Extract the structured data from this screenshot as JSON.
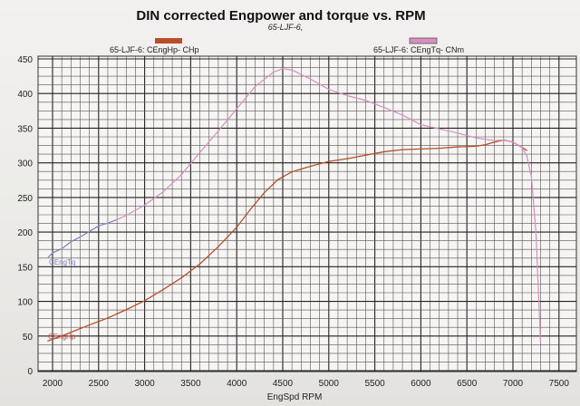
{
  "chart_data": {
    "type": "line",
    "title": "DIN corrected Engpower and torque vs. RPM",
    "subtitle": "65-LJF-6,",
    "xlabel": "EngSpd  RPM",
    "ylabel": "",
    "xlim": [
      1950,
      7600
    ],
    "ylim": [
      0,
      460
    ],
    "x_ticks": [
      2000,
      2500,
      3000,
      3500,
      4000,
      4500,
      5000,
      5500,
      6000,
      6500,
      7000,
      7500
    ],
    "y_ticks": [
      450,
      400,
      350,
      300,
      250,
      200,
      150,
      100,
      50,
      0
    ],
    "y_tick_labels": [
      "450",
      "400",
      "350",
      "300",
      "250",
      "200",
      "150",
      "100",
      "50",
      "0"
    ],
    "grid": true,
    "legend_placement": "top",
    "series": [
      {
        "name": "65-LJF-6: CEngHp-  CHp",
        "curve_label": "CEngHp",
        "color": "#b5502a",
        "label_color": "#c0504d",
        "x": [
          1950,
          2100,
          2250,
          2400,
          2600,
          2800,
          3000,
          3200,
          3400,
          3600,
          3800,
          4000,
          4150,
          4300,
          4450,
          4600,
          4800,
          5000,
          5200,
          5400,
          5600,
          5800,
          6000,
          6200,
          6400,
          6600,
          6700,
          6800,
          6900,
          7000,
          7100,
          7150
        ],
        "values": [
          43,
          50,
          58,
          66,
          76,
          88,
          101,
          117,
          134,
          154,
          179,
          207,
          233,
          257,
          276,
          287,
          295,
          302,
          306,
          311,
          316,
          319,
          320,
          321,
          323,
          324,
          326,
          330,
          333,
          330,
          322,
          318
        ]
      },
      {
        "name": "65-LJF-6: CEngTq-  CNm",
        "curve_label": "CEngTq",
        "color": "#d68fbf",
        "label_color": "#7a7fbf",
        "early_color": "#7a7fbf",
        "x": [
          1950,
          2000,
          2100,
          2200,
          2300,
          2400,
          2500,
          2600,
          2700,
          2800,
          3000,
          3200,
          3400,
          3600,
          3800,
          4000,
          4200,
          4400,
          4500,
          4600,
          4800,
          5000,
          5200,
          5400,
          5600,
          5800,
          6000,
          6200,
          6400,
          6600,
          6800,
          6900,
          7000,
          7100,
          7150,
          7200,
          7250,
          7300
        ],
        "values": [
          163,
          170,
          176,
          186,
          193,
          201,
          209,
          213,
          218,
          224,
          239,
          258,
          283,
          315,
          346,
          378,
          410,
          431,
          436,
          434,
          421,
          406,
          397,
          390,
          380,
          369,
          355,
          349,
          343,
          336,
          332,
          333,
          330,
          322,
          310,
          280,
          200,
          40
        ]
      }
    ]
  }
}
